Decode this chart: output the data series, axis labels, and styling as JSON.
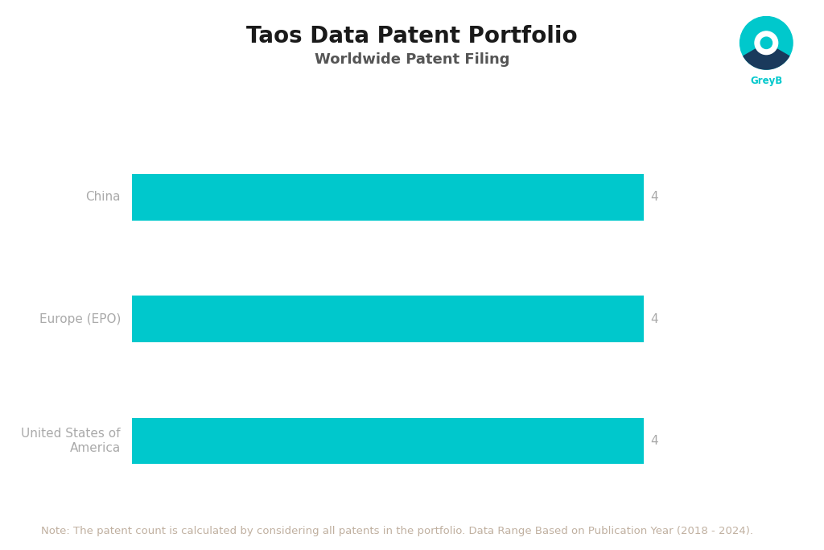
{
  "title": "Taos Data Patent Portfolio",
  "subtitle": "Worldwide Patent Filing",
  "categories": [
    "China",
    "Europe (EPO)",
    "United States of\nAmerica"
  ],
  "values": [
    4,
    4,
    4
  ],
  "bar_color": "#00C8CC",
  "value_color": "#aaaaaa",
  "label_color": "#aaaaaa",
  "note_text": "Note: The patent count is calculated by considering all patents in the portfolio. Data Range Based on Publication Year (2018 - 2024).",
  "note_color": "#c0b0a0",
  "title_color": "#1a1a1a",
  "subtitle_color": "#555555",
  "bg_color": "#ffffff",
  "xlim": [
    0,
    4.7
  ],
  "title_fontsize": 20,
  "subtitle_fontsize": 13,
  "label_fontsize": 11,
  "value_fontsize": 11,
  "note_fontsize": 9.5
}
